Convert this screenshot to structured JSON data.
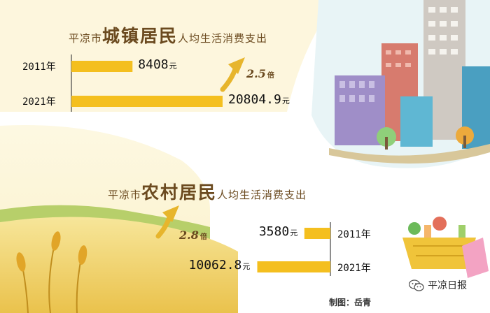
{
  "colors": {
    "bar": "#f4bf1f",
    "arrow": "#e7b52c",
    "title": "#6b4a1f"
  },
  "brand": {
    "name": "平凉日报",
    "icon": "wechat-icon"
  },
  "credit": "制图：岳青",
  "chart_data": [
    {
      "type": "bar",
      "title_prefix": "平凉市",
      "title_emph": "城镇居民",
      "title_suffix": "人均生活消费支出",
      "categories": [
        "2011年",
        "2021年"
      ],
      "values": [
        8408,
        20804.9
      ],
      "value_labels": [
        "8408",
        "20804.9"
      ],
      "unit": "元",
      "multiplier": "2.5",
      "multiplier_unit": "倍"
    },
    {
      "type": "bar",
      "title_prefix": "平凉市",
      "title_emph": "农村居民",
      "title_suffix": "人均生活消费支出",
      "categories": [
        "2011年",
        "2021年"
      ],
      "values": [
        3580,
        10062.8
      ],
      "value_labels": [
        "3580",
        "10062.8"
      ],
      "unit": "元",
      "multiplier": "2.8",
      "multiplier_unit": "倍"
    }
  ]
}
